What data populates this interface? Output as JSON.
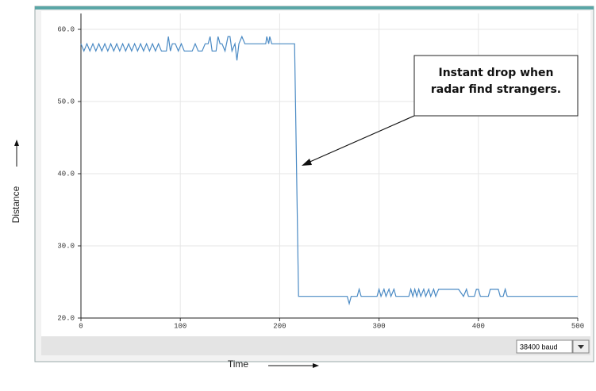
{
  "chart_data": {
    "type": "line",
    "x_label": "Time",
    "y_label": "Distance",
    "annotation": [
      "Instant drop when",
      "radar find strangers."
    ],
    "baud_rate": "38400 baud",
    "xlim": [
      0,
      500
    ],
    "xticks": [
      0,
      100,
      200,
      300,
      400,
      500
    ],
    "ylim": [
      20,
      60
    ],
    "yticks": [
      {
        "value": 20,
        "label": "20.0"
      },
      {
        "value": 30,
        "label": "30.0"
      },
      {
        "value": 40,
        "label": "40.0"
      },
      {
        "value": 50,
        "label": "50.0"
      },
      {
        "value": 60,
        "label": "60.0"
      }
    ],
    "grid": true,
    "series": [
      {
        "color": "#4a8ac4",
        "x": [
          0,
          3,
          6,
          9,
          12,
          15,
          18,
          21,
          24,
          27,
          30,
          33,
          36,
          39,
          42,
          45,
          48,
          51,
          54,
          57,
          60,
          63,
          66,
          69,
          72,
          75,
          78,
          81,
          84,
          86,
          88,
          90,
          92,
          95,
          98,
          101,
          104,
          108,
          112,
          115,
          118,
          122,
          125,
          128,
          130,
          132,
          136,
          138,
          140,
          142,
          145,
          148,
          150,
          152,
          155,
          157,
          159,
          162,
          165,
          186,
          187,
          189,
          190,
          192,
          215,
          219,
          268,
          270,
          272,
          278,
          280,
          282,
          298,
          300,
          302,
          305,
          307,
          310,
          312,
          315,
          317,
          330,
          332,
          334,
          336,
          338,
          340,
          342,
          345,
          347,
          350,
          352,
          355,
          357,
          360,
          380,
          385,
          388,
          390,
          396,
          398,
          400,
          402,
          410,
          412,
          420,
          422,
          425,
          427,
          429,
          500
        ],
        "values": [
          58,
          57,
          58,
          57,
          58,
          57,
          58,
          57,
          58,
          57,
          58,
          57,
          58,
          57,
          58,
          57,
          58,
          57,
          58,
          57,
          58,
          57,
          58,
          57,
          58,
          57,
          58,
          57,
          57,
          57,
          59,
          57,
          58,
          58,
          57,
          58,
          57,
          57,
          57,
          58,
          57,
          57,
          58,
          58,
          59,
          57,
          57,
          59,
          58,
          58,
          57,
          59,
          59,
          57,
          58,
          55.7,
          58,
          59,
          58,
          58,
          59,
          58,
          59,
          58,
          58,
          23,
          23,
          22,
          23,
          23,
          24,
          23,
          23,
          24,
          23,
          24,
          23,
          24,
          23,
          24,
          23,
          23,
          24,
          23,
          24,
          23,
          24,
          23,
          24,
          23,
          24,
          23,
          24,
          23,
          24,
          24,
          23,
          24,
          23,
          23,
          24,
          24,
          23,
          23,
          24,
          24,
          23,
          23,
          24,
          23,
          23
        ]
      }
    ]
  }
}
